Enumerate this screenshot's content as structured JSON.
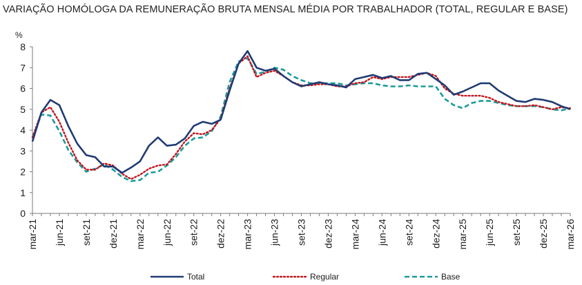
{
  "chart_data": {
    "type": "line",
    "title": "VARIAÇÃO HOMÓLOGA DA REMUNERAÇÃO BRUTA MENSAL MÉDIA POR TRABALHADOR (TOTAL, REGULAR E BASE)",
    "ylabel": "%",
    "xlabel": "",
    "ylim": [
      0,
      8
    ],
    "yticks": [
      0,
      1,
      2,
      3,
      4,
      5,
      6,
      7,
      8
    ],
    "grid": false,
    "legend_position": "bottom",
    "x_start": "mar-21",
    "x_tick_labels": [
      "mar-21",
      "jun-21",
      "set-21",
      "dez-21",
      "mar-22",
      "jun-22",
      "set-22",
      "dez-22",
      "mar-23",
      "jun-23",
      "set-23",
      "dez-23",
      "mar-24",
      "jun-24",
      "set-24",
      "dez-24",
      "mar-25",
      "jun-25",
      "set-25",
      "dez-25",
      "mar-26"
    ],
    "series": [
      {
        "name": "Total",
        "color": "#1f3b73",
        "style": "solid",
        "values": [
          3.45,
          4.85,
          5.45,
          5.2,
          4.2,
          3.35,
          2.8,
          2.7,
          2.25,
          2.25,
          1.95,
          2.2,
          2.5,
          3.25,
          3.65,
          3.25,
          3.3,
          3.6,
          4.2,
          4.4,
          4.3,
          4.5,
          5.9,
          7.2,
          7.8,
          7.0,
          6.85,
          6.95,
          6.6,
          6.3,
          6.1,
          6.2,
          6.3,
          6.2,
          6.15,
          6.05,
          6.45,
          6.55,
          6.65,
          6.5,
          6.6,
          6.4,
          6.4,
          6.7,
          6.75,
          6.45,
          6.15,
          5.7,
          5.85,
          6.05,
          6.25,
          6.25,
          5.9,
          5.65,
          5.4,
          5.35,
          5.5,
          5.45,
          5.35,
          5.15,
          5.0
        ]
      },
      {
        "name": "Regular",
        "color": "#c0141c",
        "style": "dotted",
        "values": [
          3.65,
          4.85,
          5.1,
          4.4,
          3.4,
          2.55,
          2.1,
          2.1,
          2.4,
          2.3,
          1.9,
          1.65,
          1.85,
          2.15,
          2.3,
          2.35,
          2.85,
          3.45,
          3.85,
          3.8,
          4.0,
          4.55,
          6.0,
          7.2,
          7.55,
          6.55,
          6.75,
          6.85,
          6.6,
          6.3,
          6.15,
          6.15,
          6.2,
          6.2,
          6.1,
          6.1,
          6.25,
          6.3,
          6.55,
          6.45,
          6.55,
          6.55,
          6.55,
          6.65,
          6.75,
          6.6,
          6.0,
          5.75,
          5.65,
          5.65,
          5.65,
          5.55,
          5.35,
          5.25,
          5.15,
          5.15,
          5.2,
          5.1,
          5.0,
          5.1,
          5.05
        ]
      },
      {
        "name": "Base",
        "color": "#1a9a9a",
        "style": "dashed",
        "values": [
          3.65,
          4.75,
          4.7,
          3.95,
          3.05,
          2.45,
          2.0,
          2.15,
          2.35,
          2.1,
          1.75,
          1.55,
          1.6,
          1.95,
          2.0,
          2.3,
          2.7,
          3.25,
          3.6,
          3.65,
          3.95,
          4.65,
          6.3,
          7.3,
          7.45,
          6.7,
          6.8,
          7.0,
          6.9,
          6.6,
          6.4,
          6.25,
          6.25,
          6.25,
          6.25,
          6.15,
          6.2,
          6.25,
          6.25,
          6.15,
          6.1,
          6.1,
          6.15,
          6.1,
          6.1,
          6.1,
          5.5,
          5.2,
          5.05,
          5.3,
          5.4,
          5.4,
          5.3,
          5.2,
          5.15,
          5.15,
          5.15,
          5.1,
          5.0,
          4.95,
          5.05
        ]
      }
    ]
  }
}
